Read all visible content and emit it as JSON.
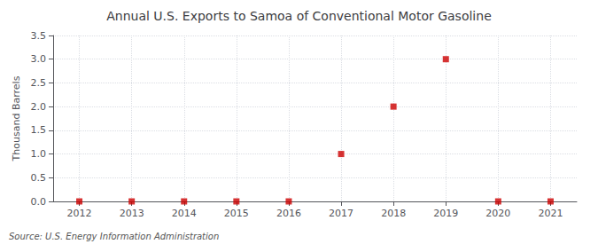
{
  "chart_data": {
    "type": "scatter",
    "title": "Annual U.S. Exports to Samoa of Conventional Motor Gasoline",
    "ylabel": "Thousand Barrels",
    "source": "Source: U.S. Energy Information Administration",
    "x": [
      2012,
      2013,
      2014,
      2015,
      2016,
      2017,
      2018,
      2019,
      2020,
      2021
    ],
    "values": [
      0,
      0,
      0,
      0,
      0,
      1.0,
      2.0,
      3.0,
      0,
      0
    ],
    "color": "#cc0000",
    "marker": "square",
    "xlim": [
      2011.5,
      2021.5
    ],
    "xticks": [
      2012,
      2013,
      2014,
      2015,
      2016,
      2017,
      2018,
      2019,
      2020,
      2021
    ],
    "ylim": [
      0.0,
      3.5
    ],
    "yticks": [
      {
        "value": 0,
        "label": "0.0"
      },
      0.5,
      {
        "value": 1,
        "label": "1.0"
      },
      1.5,
      {
        "value": 2,
        "label": "2.0"
      },
      2.5,
      {
        "value": 3,
        "label": "3.0"
      },
      3.5
    ],
    "grid": true
  }
}
